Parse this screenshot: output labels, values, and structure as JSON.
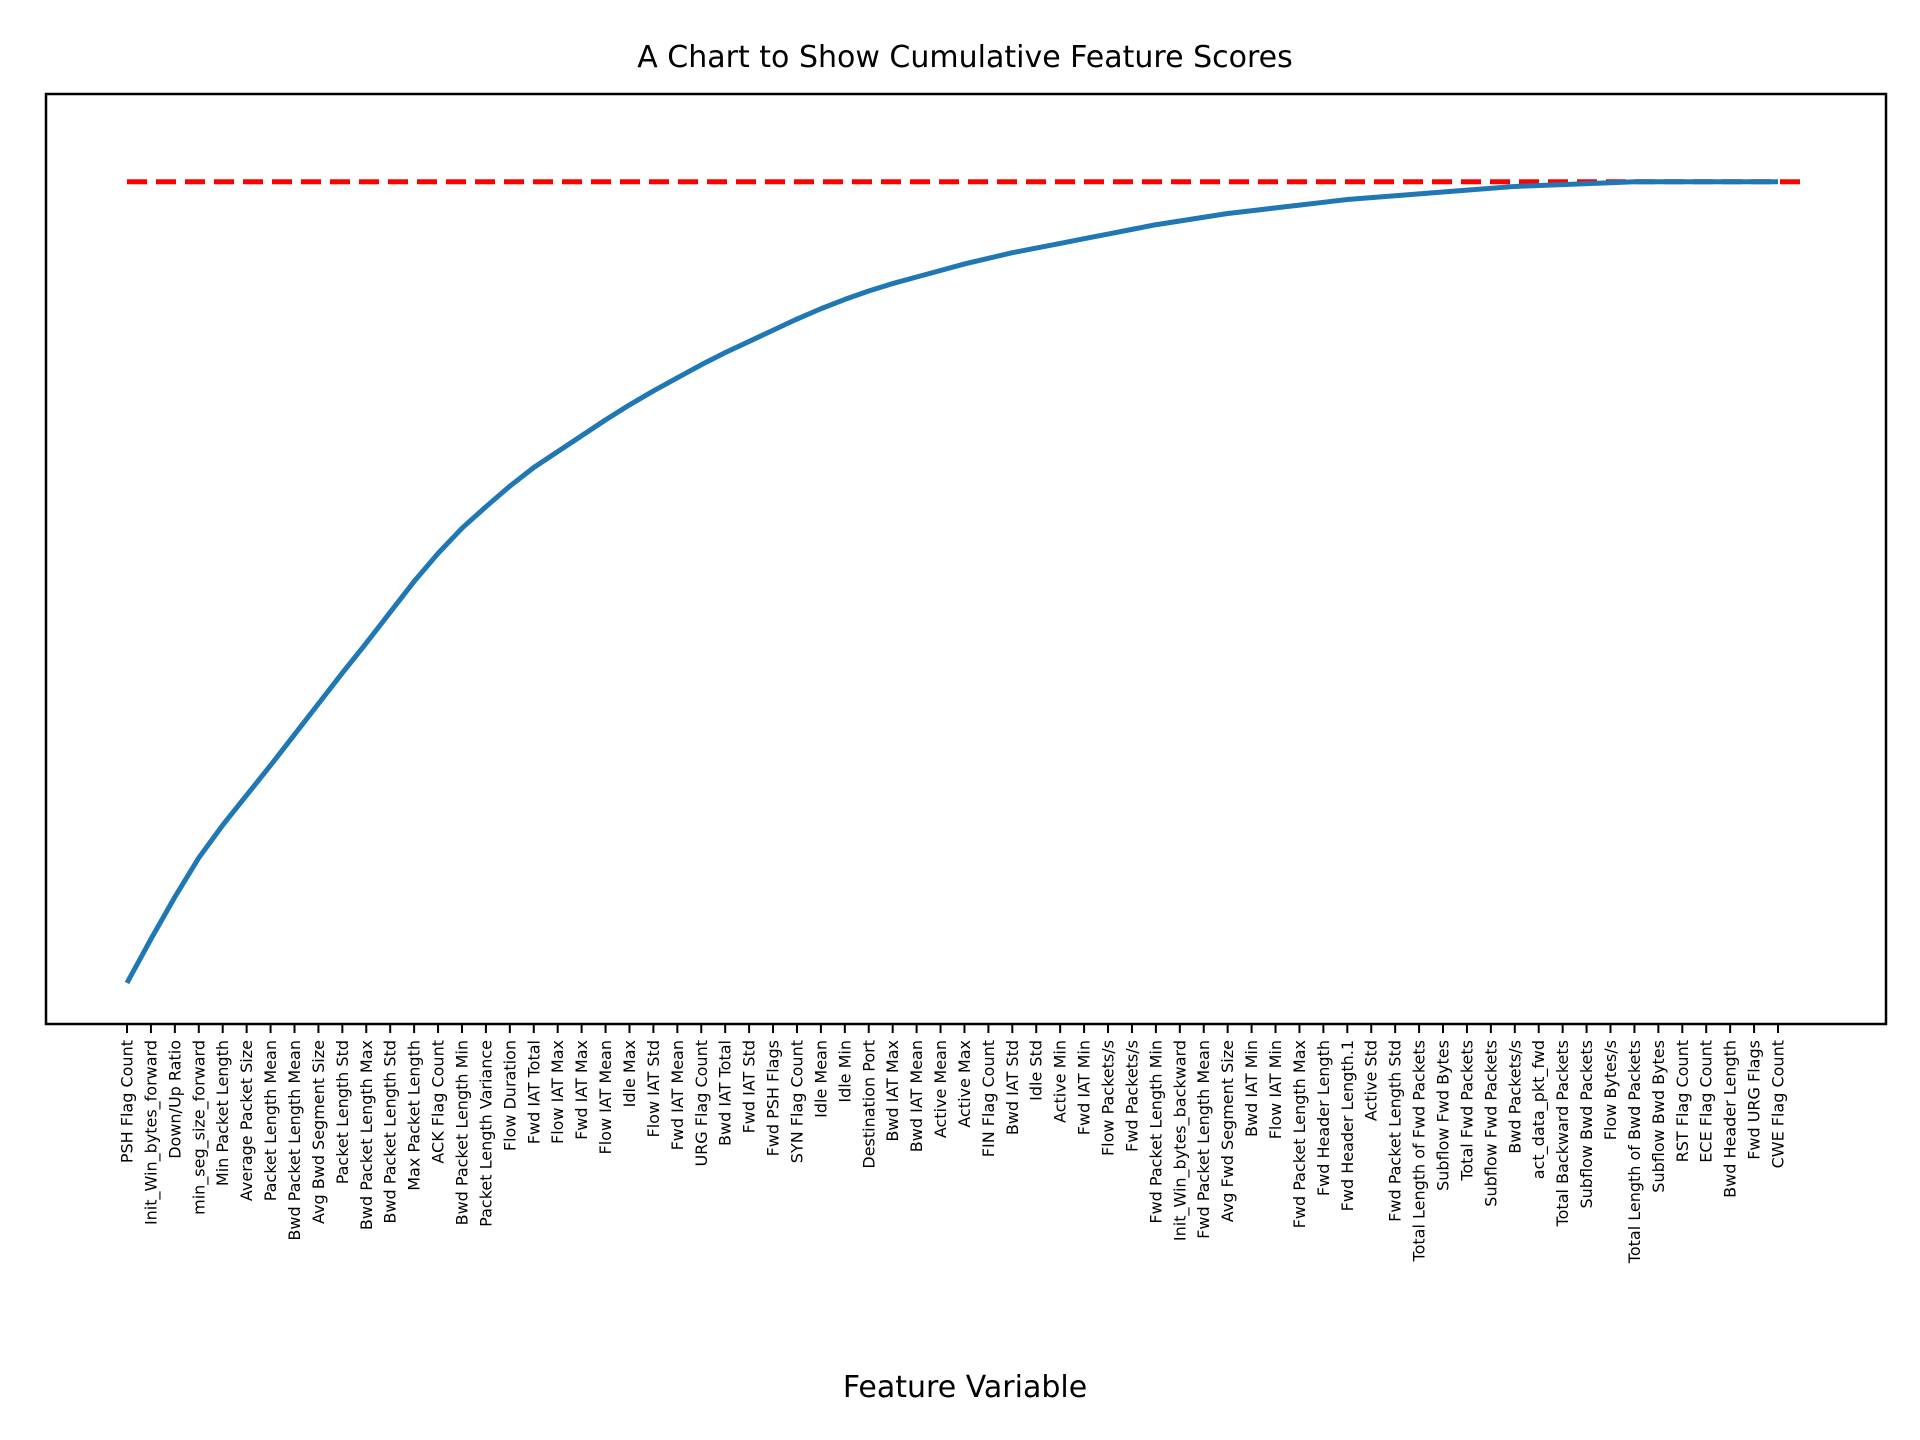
{
  "chart_data": {
    "type": "line",
    "title": "A Chart to Show Cumulative Feature Scores",
    "xlabel": "Feature Variable",
    "ylabel": "",
    "ylim": [
      0.048,
      1.044
    ],
    "grid": false,
    "y_ticks_visible": false,
    "categories": [
      "PSH Flag Count",
      "Init_Win_bytes_forward",
      "Down/Up Ratio",
      "min_seg_size_forward",
      "Min Packet Length",
      "Average Packet Size",
      "Packet Length Mean",
      "Bwd Packet Length Mean",
      "Avg Bwd Segment Size",
      "Packet Length Std",
      "Bwd Packet Length Max",
      "Bwd Packet Length Std",
      "Max Packet Length",
      "ACK Flag Count",
      "Bwd Packet Length Min",
      "Packet Length Variance",
      "Flow Duration",
      "Fwd IAT Total",
      "Flow IAT Max",
      "Fwd IAT Max",
      "Flow IAT Mean",
      "Idle Max",
      "Flow IAT Std",
      "Fwd IAT Mean",
      "URG Flag Count",
      "Bwd IAT Total",
      "Fwd IAT Std",
      "Fwd PSH Flags",
      "SYN Flag Count",
      "Idle Mean",
      "Idle Min",
      "Destination Port",
      "Bwd IAT Max",
      "Bwd IAT Mean",
      "Active Mean",
      "Active Max",
      "FIN Flag Count",
      "Bwd IAT Std",
      "Idle Std",
      "Active Min",
      "Fwd IAT Min",
      "Flow Packets/s",
      "Fwd Packets/s",
      "Fwd Packet Length Min",
      "Init_Win_bytes_backward",
      "Fwd Packet Length Mean",
      "Avg Fwd Segment Size",
      "Bwd IAT Min",
      "Flow IAT Min",
      "Fwd Packet Length Max",
      "Fwd Header Length",
      "Fwd Header Length.1",
      "Active Std",
      "Fwd Packet Length Std",
      "Total Length of Fwd Packets",
      "Subflow Fwd Bytes",
      "Total Fwd Packets",
      "Subflow Fwd Packets",
      "Bwd Packets/s",
      "act_data_pkt_fwd",
      "Total Backward Packets",
      "Subflow Bwd Packets",
      "Flow Bytes/s",
      "Total Length of Bwd Packets",
      "Subflow Bwd Bytes",
      "RST Flag Count",
      "ECE Flag Count",
      "Bwd Header Length",
      "Fwd URG Flags",
      "CWE Flag Count"
    ],
    "series": [
      {
        "color": "#1f77b4",
        "values": [
          0.092,
          0.139,
          0.184,
          0.226,
          0.261,
          0.293,
          0.325,
          0.358,
          0.391,
          0.424,
          0.456,
          0.489,
          0.522,
          0.552,
          0.579,
          0.602,
          0.624,
          0.644,
          0.661,
          0.678,
          0.695,
          0.711,
          0.726,
          0.74,
          0.754,
          0.767,
          0.779,
          0.791,
          0.803,
          0.814,
          0.824,
          0.833,
          0.841,
          0.848,
          0.855,
          0.862,
          0.868,
          0.874,
          0.879,
          0.884,
          0.889,
          0.894,
          0.899,
          0.904,
          0.908,
          0.912,
          0.916,
          0.919,
          0.922,
          0.925,
          0.928,
          0.931,
          0.933,
          0.935,
          0.937,
          0.939,
          0.941,
          0.943,
          0.945,
          0.946,
          0.947,
          0.948,
          0.949,
          0.95,
          0.95,
          0.95,
          0.95,
          0.95,
          0.95,
          0.95
        ]
      }
    ],
    "reference_line": {
      "style": "dashed",
      "color": "#ff0000",
      "value": 0.95
    }
  }
}
